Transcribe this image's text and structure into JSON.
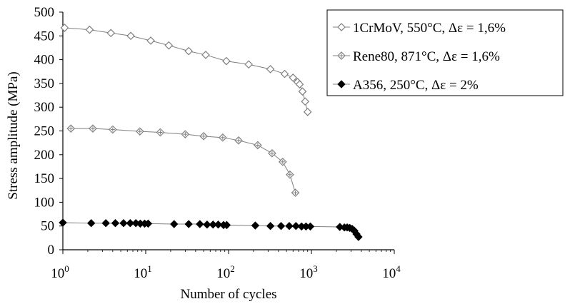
{
  "chart_data": {
    "type": "scatter",
    "title": "",
    "xlabel": "Number of cycles",
    "ylabel": "Stress amplitude (MPa)",
    "xscale": "log",
    "xlim": [
      1,
      10000
    ],
    "ylim": [
      0,
      500
    ],
    "grid": false,
    "legend_position": "top-right",
    "x_ticks": [
      {
        "base": "10",
        "exp": "0"
      },
      {
        "base": "10",
        "exp": "1"
      },
      {
        "base": "10",
        "exp": "2"
      },
      {
        "base": "10",
        "exp": "3"
      },
      {
        "base": "10",
        "exp": "4"
      }
    ],
    "y_ticks": [
      "0",
      "50",
      "100",
      "150",
      "200",
      "250",
      "300",
      "350",
      "400",
      "450",
      "500"
    ],
    "series": [
      {
        "name": "1CrMoV, 550°C, Δε = 1,6%",
        "marker": "diamond-open",
        "color": "#7f7f7f",
        "x": [
          1.05,
          2.1,
          3.8,
          6.6,
          11.5,
          19,
          33,
          53,
          94,
          175,
          320,
          475,
          600,
          680,
          720,
          780,
          840
        ],
        "y": [
          467,
          463,
          456,
          450,
          440,
          430,
          418,
          410,
          397,
          390,
          380,
          370,
          362,
          353,
          348,
          333,
          312
        ]
      },
      {
        "name": "Rene80, 871°C, Δε = 1,6%",
        "marker": "diamond-crossed",
        "color": "#7f7f7f",
        "x": [
          1.25,
          2.3,
          4,
          8.5,
          15,
          30,
          50,
          85,
          132,
          225,
          335,
          450,
          550,
          640
        ],
        "y": [
          255,
          255,
          253,
          249,
          247,
          243,
          239,
          236,
          230,
          220,
          203,
          185,
          158,
          120
        ]
      },
      {
        "name": "A356, 250°C, Δε = 2%",
        "marker": "diamond-filled",
        "color": "#000000",
        "x": [
          1,
          2.2,
          3.3,
          4.3,
          5.4,
          6.5,
          7.6,
          8.6,
          9.7,
          10.7,
          22,
          33,
          45,
          55,
          65,
          75,
          87,
          95,
          210,
          320,
          430,
          540,
          650,
          760,
          860,
          970,
          2200,
          2500,
          2700,
          2900,
          3100,
          3300,
          3500,
          3700
        ],
        "y": [
          57,
          56,
          56,
          56,
          56,
          56,
          56,
          55,
          55,
          55,
          54,
          54,
          54,
          53,
          53,
          53,
          52,
          52,
          51,
          50,
          50,
          50,
          50,
          49,
          49,
          49,
          48,
          47,
          47,
          46,
          44,
          40,
          33,
          27
        ]
      }
    ],
    "extra_points": [
      {
        "series": "1CrMoV, 550°C, Δε = 1,6%",
        "x": 900,
        "y": 290
      }
    ]
  }
}
